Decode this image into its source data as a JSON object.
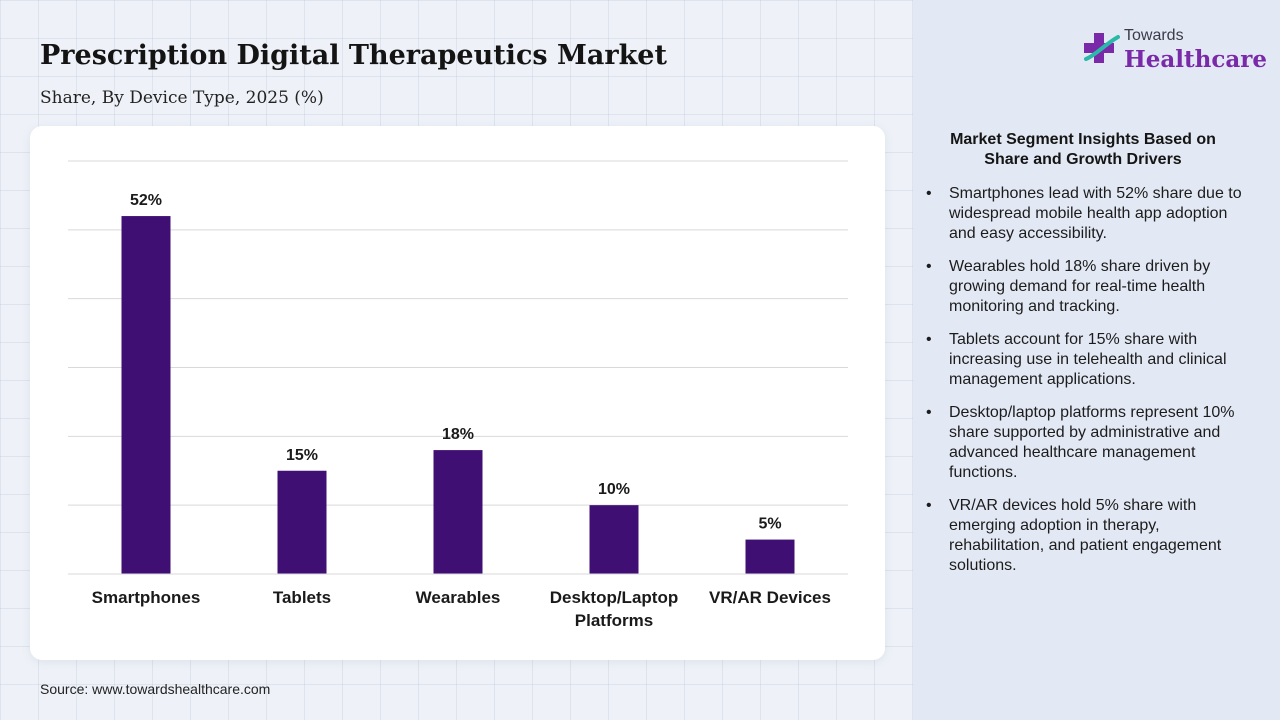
{
  "header": {
    "title": "Prescription Digital Therapeutics Market",
    "subtitle": "Share, By Device Type, 2025 (%)"
  },
  "logo": {
    "top_text": "Towards",
    "main_text": "Healthcare",
    "icon": "medical-cross-icon"
  },
  "insights": {
    "title": "Market Segment Insights Based on Share and Growth Drivers",
    "bullet_glyph": "•",
    "items": [
      "Smartphones lead with 52% share due to widespread mobile health app adoption and easy accessibility.",
      "Wearables hold 18% share driven by growing demand for real-time health monitoring and tracking.",
      "Tablets account for 15% share with increasing use in telehealth and clinical management applications.",
      "Desktop/laptop platforms represent 10% share supported by administrative and advanced healthcare management functions.",
      "VR/AR devices hold 5% share with emerging adoption in therapy, rehabilitation, and patient engagement solutions."
    ]
  },
  "source": "Source: www.towardshealthcare.com",
  "colors": {
    "bar": "#3f0f73",
    "logo_purple": "#7a2aa8",
    "logo_teal": "#2bb8a8",
    "gridline": "#d9d9d9"
  },
  "chart_data": {
    "type": "bar",
    "categories": [
      "Smartphones",
      "Tablets",
      "Wearables",
      "Desktop/Laptop Platforms",
      "VR/AR Devices"
    ],
    "category_lines": [
      [
        "Smartphones"
      ],
      [
        "Tablets"
      ],
      [
        "Wearables"
      ],
      [
        "Desktop/Laptop",
        "Platforms"
      ],
      [
        "VR/AR Devices"
      ]
    ],
    "values": [
      52,
      15,
      18,
      10,
      5
    ],
    "value_labels": [
      "52%",
      "15%",
      "18%",
      "10%",
      "5%"
    ],
    "ylim": [
      0,
      60
    ],
    "gridlines": true,
    "title": "",
    "xlabel": "",
    "ylabel": ""
  }
}
